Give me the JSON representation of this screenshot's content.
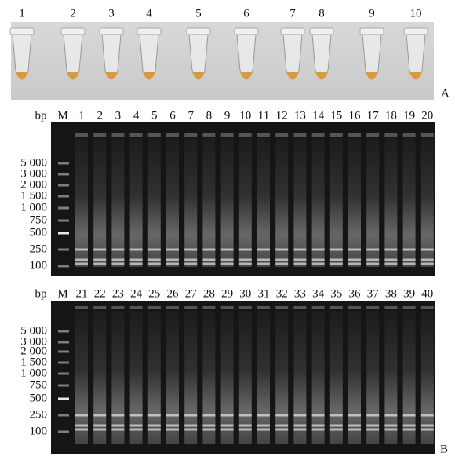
{
  "panel_a": {
    "tube_labels": [
      "1",
      "2",
      "3",
      "4",
      "5",
      "6",
      "7",
      "8",
      "9",
      "10"
    ],
    "label": "A"
  },
  "gels": [
    {
      "bp_label": "bp",
      "marker_label": "M",
      "lanes": [
        "1",
        "2",
        "3",
        "4",
        "5",
        "6",
        "7",
        "8",
        "9",
        "10",
        "11",
        "12",
        "13",
        "14",
        "15",
        "16",
        "17",
        "18",
        "19",
        "20"
      ],
      "ladder": [
        "5 000",
        "3 000",
        "2 000",
        "1 500",
        "1 000",
        "750",
        "500",
        "250",
        "100"
      ]
    },
    {
      "bp_label": "bp",
      "marker_label": "M",
      "lanes": [
        "21",
        "22",
        "23",
        "24",
        "25",
        "26",
        "27",
        "28",
        "29",
        "30",
        "31",
        "32",
        "33",
        "34",
        "35",
        "36",
        "37",
        "38",
        "39",
        "40"
      ],
      "ladder": [
        "5 000",
        "3 000",
        "2 000",
        "1 500",
        "1 000",
        "750",
        "500",
        "250",
        "100"
      ]
    }
  ],
  "panel_b_label": "B"
}
